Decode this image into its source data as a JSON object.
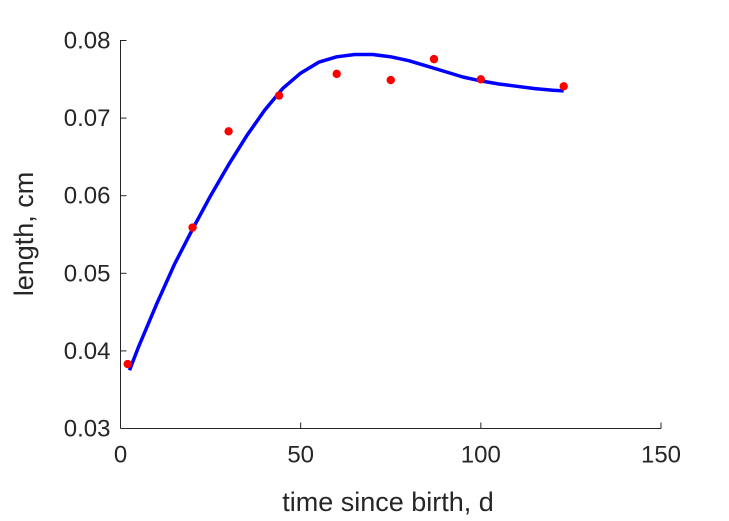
{
  "chart_data": {
    "type": "scatter",
    "xlabel": "time since birth, d",
    "ylabel": "length, cm",
    "xlim": [
      0,
      150
    ],
    "ylim": [
      0.03,
      0.08
    ],
    "xticks": [
      0,
      50,
      100,
      150
    ],
    "yticks": [
      0.03,
      0.04,
      0.05,
      0.06,
      0.07,
      0.08
    ],
    "xtick_labels": [
      "0",
      "50",
      "100",
      "150"
    ],
    "ytick_labels": [
      "0.03",
      "0.04",
      "0.05",
      "0.06",
      "0.07",
      "0.08"
    ],
    "grid": false,
    "series": [
      {
        "kind": "points",
        "color": "#ff0000",
        "x": [
          2,
          20,
          30,
          44,
          60,
          75,
          87,
          100,
          123
        ],
        "y": [
          0.0383,
          0.0559,
          0.0683,
          0.0729,
          0.0757,
          0.0749,
          0.0776,
          0.075,
          0.0741
        ]
      },
      {
        "kind": "line",
        "color": "#0000ff",
        "x": [
          2.5,
          5,
          10,
          15,
          20,
          25,
          30,
          35,
          40,
          45,
          50,
          55,
          60,
          65,
          70,
          75,
          80,
          85,
          90,
          95,
          100,
          105,
          110,
          115,
          120,
          123
        ],
        "y": [
          0.0375,
          0.0405,
          0.046,
          0.0512,
          0.0557,
          0.06,
          0.064,
          0.0677,
          0.071,
          0.0738,
          0.0758,
          0.0772,
          0.0779,
          0.0782,
          0.0782,
          0.0779,
          0.0774,
          0.0767,
          0.076,
          0.0753,
          0.0748,
          0.0744,
          0.0741,
          0.0738,
          0.0736,
          0.0735
        ]
      }
    ]
  }
}
